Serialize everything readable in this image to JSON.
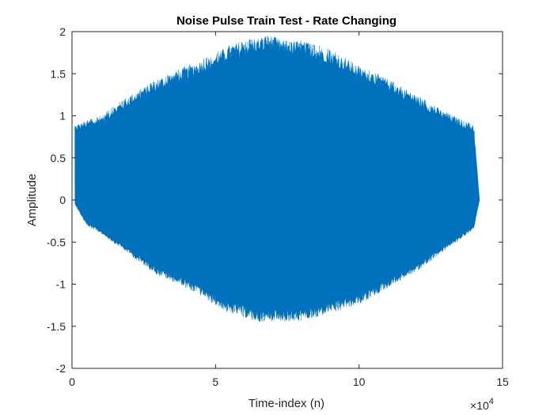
{
  "chart_data": {
    "type": "line",
    "title": "Noise Pulse Train Test - Rate Changing",
    "xlabel": "Time-index (n)",
    "ylabel": "Amplitude",
    "xlim": [
      0,
      15
    ],
    "ylim": [
      -2,
      2
    ],
    "x_exponent_base": "×10",
    "x_exponent_power": "4",
    "xticks": [
      0,
      5,
      10,
      15
    ],
    "xtick_labels": [
      "0",
      "5",
      "10",
      "15"
    ],
    "yticks": [
      -2,
      -1.5,
      -1,
      -0.5,
      0,
      0.5,
      1,
      1.5,
      2
    ],
    "ytick_labels": [
      "-2",
      "-1.5",
      "-1",
      "-0.5",
      "0",
      "0.5",
      "1",
      "1.5",
      "2"
    ],
    "grid": false,
    "series": [
      {
        "color": "#0072BD",
        "envelope": {
          "x": [
            0.1,
            0.5,
            1,
            2,
            3,
            4,
            5,
            5.5,
            6,
            6.5,
            7,
            7.5,
            8,
            8.5,
            9,
            10,
            11,
            12,
            13,
            14,
            14.2
          ],
          "upper": [
            0.9,
            0.95,
            1.0,
            1.25,
            1.45,
            1.6,
            1.75,
            1.85,
            1.9,
            1.95,
            1.95,
            1.9,
            1.9,
            1.85,
            1.8,
            1.6,
            1.45,
            1.25,
            1.05,
            0.9,
            0.0
          ],
          "lower": [
            -0.05,
            -0.3,
            -0.4,
            -0.65,
            -0.9,
            -1.05,
            -1.25,
            -1.35,
            -1.4,
            -1.45,
            -1.45,
            -1.45,
            -1.45,
            -1.4,
            -1.35,
            -1.25,
            -1.05,
            -0.85,
            -0.6,
            -0.35,
            0.0
          ]
        }
      }
    ]
  }
}
